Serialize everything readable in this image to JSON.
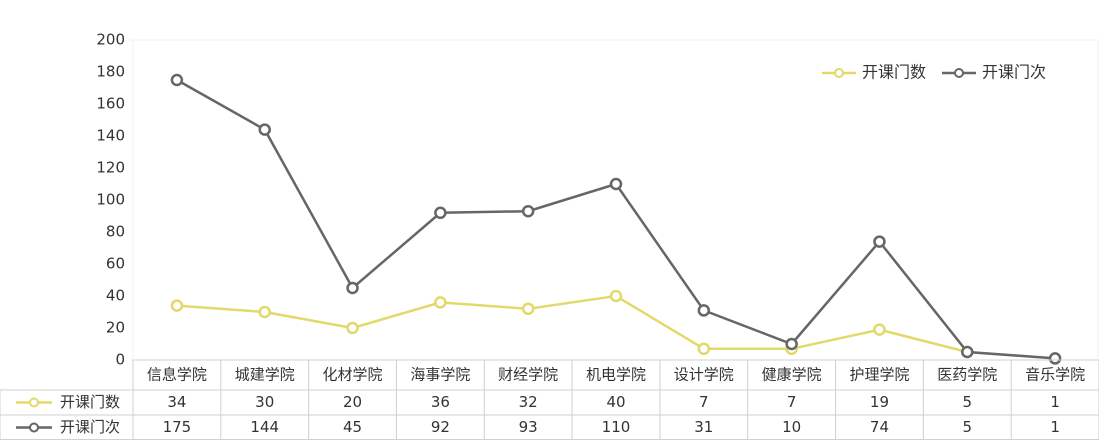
{
  "chart_data": {
    "type": "line",
    "categories": [
      "信息学院",
      "城建学院",
      "化材学院",
      "海事学院",
      "财经学院",
      "机电学院",
      "设计学院",
      "健康学院",
      "护理学院",
      "医药学院",
      "音乐学院"
    ],
    "series": [
      {
        "name": "开课门数",
        "color": "#e3d96a",
        "values": [
          34,
          30,
          20,
          36,
          32,
          40,
          7,
          7,
          19,
          5,
          1
        ]
      },
      {
        "name": "开课门次",
        "color": "#666666",
        "values": [
          175,
          144,
          45,
          92,
          93,
          110,
          31,
          10,
          74,
          5,
          1
        ]
      }
    ],
    "ylim": [
      0,
      200
    ],
    "yticks": [
      0,
      20,
      40,
      60,
      80,
      100,
      120,
      140,
      160,
      180,
      200
    ],
    "legend": "top-right",
    "data_table": true
  }
}
